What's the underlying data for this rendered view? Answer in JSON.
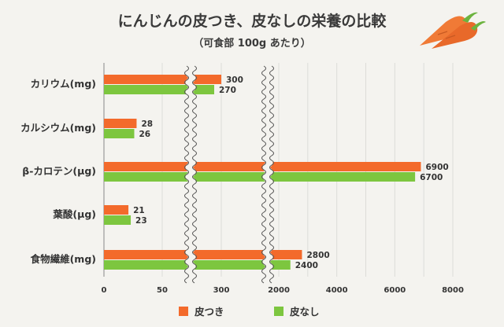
{
  "chart_data": {
    "type": "bar",
    "orientation": "horizontal",
    "title": "にんじんの皮つき、皮なしの栄養の比較",
    "subtitle": "（可食部 100g あたり）",
    "categories": [
      "カリウム(mg)",
      "カルシウム(mg)",
      "β-カロテン(μg)",
      "葉酸(μg)",
      "食物繊維(mg)"
    ],
    "series": [
      {
        "name": "皮つき",
        "color": "#f36a2b",
        "values": [
          300,
          28,
          6900,
          21,
          2800
        ]
      },
      {
        "name": "皮なし",
        "color": "#7dc63f",
        "values": [
          270,
          26,
          6700,
          23,
          2400
        ]
      }
    ],
    "x_axis": {
      "scale": "broken",
      "segments": [
        [
          0,
          50
        ],
        [
          50,
          2000
        ],
        [
          2000,
          8000
        ]
      ],
      "ticks": [
        0,
        50,
        300,
        2000,
        4000,
        6000,
        8000
      ],
      "tick_labels": [
        "0",
        "50",
        "300",
        "2000",
        "4000",
        "6000",
        "8000"
      ]
    },
    "grid": true,
    "legend": {
      "position": "bottom"
    },
    "decoration_icon": "carrot-icon"
  }
}
